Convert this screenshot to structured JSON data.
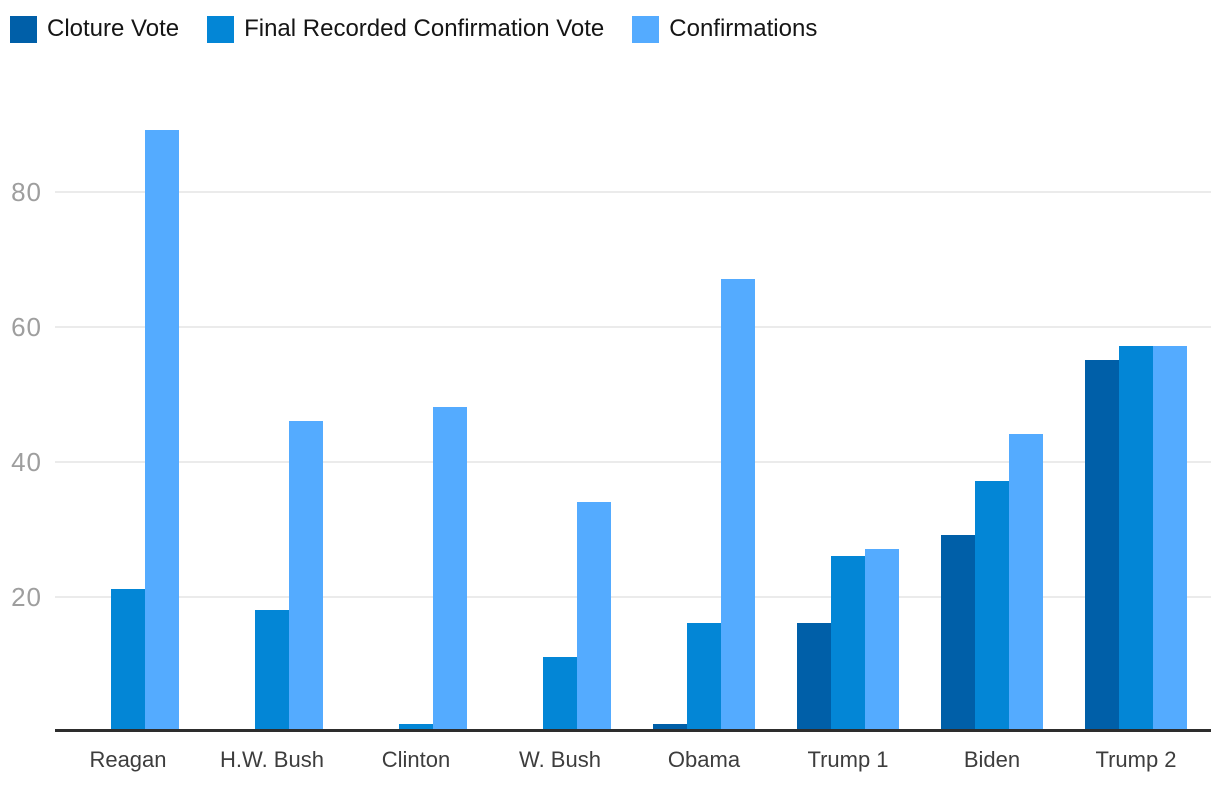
{
  "legend": {
    "items": [
      {
        "label": "Cloture Vote",
        "color": "#005fa8"
      },
      {
        "label": "Final Recorded Confirmation Vote",
        "color": "#0386d6"
      },
      {
        "label": "Confirmations",
        "color": "#54abff"
      }
    ]
  },
  "chart_data": {
    "type": "bar",
    "title": "",
    "xlabel": "",
    "ylabel": "",
    "categories": [
      "Reagan",
      "H.W. Bush",
      "Clinton",
      "W. Bush",
      "Obama",
      "Trump 1",
      "Biden",
      "Trump 2"
    ],
    "series": [
      {
        "name": "Cloture Vote",
        "color": "#005fa8",
        "values": [
          0,
          0,
          0,
          0,
          1,
          16,
          29,
          55
        ]
      },
      {
        "name": "Final Recorded Confirmation Vote",
        "color": "#0386d6",
        "values": [
          21,
          18,
          1,
          11,
          16,
          26,
          37,
          57
        ]
      },
      {
        "name": "Confirmations",
        "color": "#54abff",
        "values": [
          89,
          46,
          48,
          34,
          67,
          27,
          44,
          57
        ]
      }
    ],
    "yticks": [
      20,
      40,
      60,
      80
    ],
    "ylim": [
      0,
      95
    ],
    "grid": true,
    "gridline_color": "#ebebeb",
    "axis_line_color": "#2d2d2d",
    "legend_position": "top-left"
  }
}
